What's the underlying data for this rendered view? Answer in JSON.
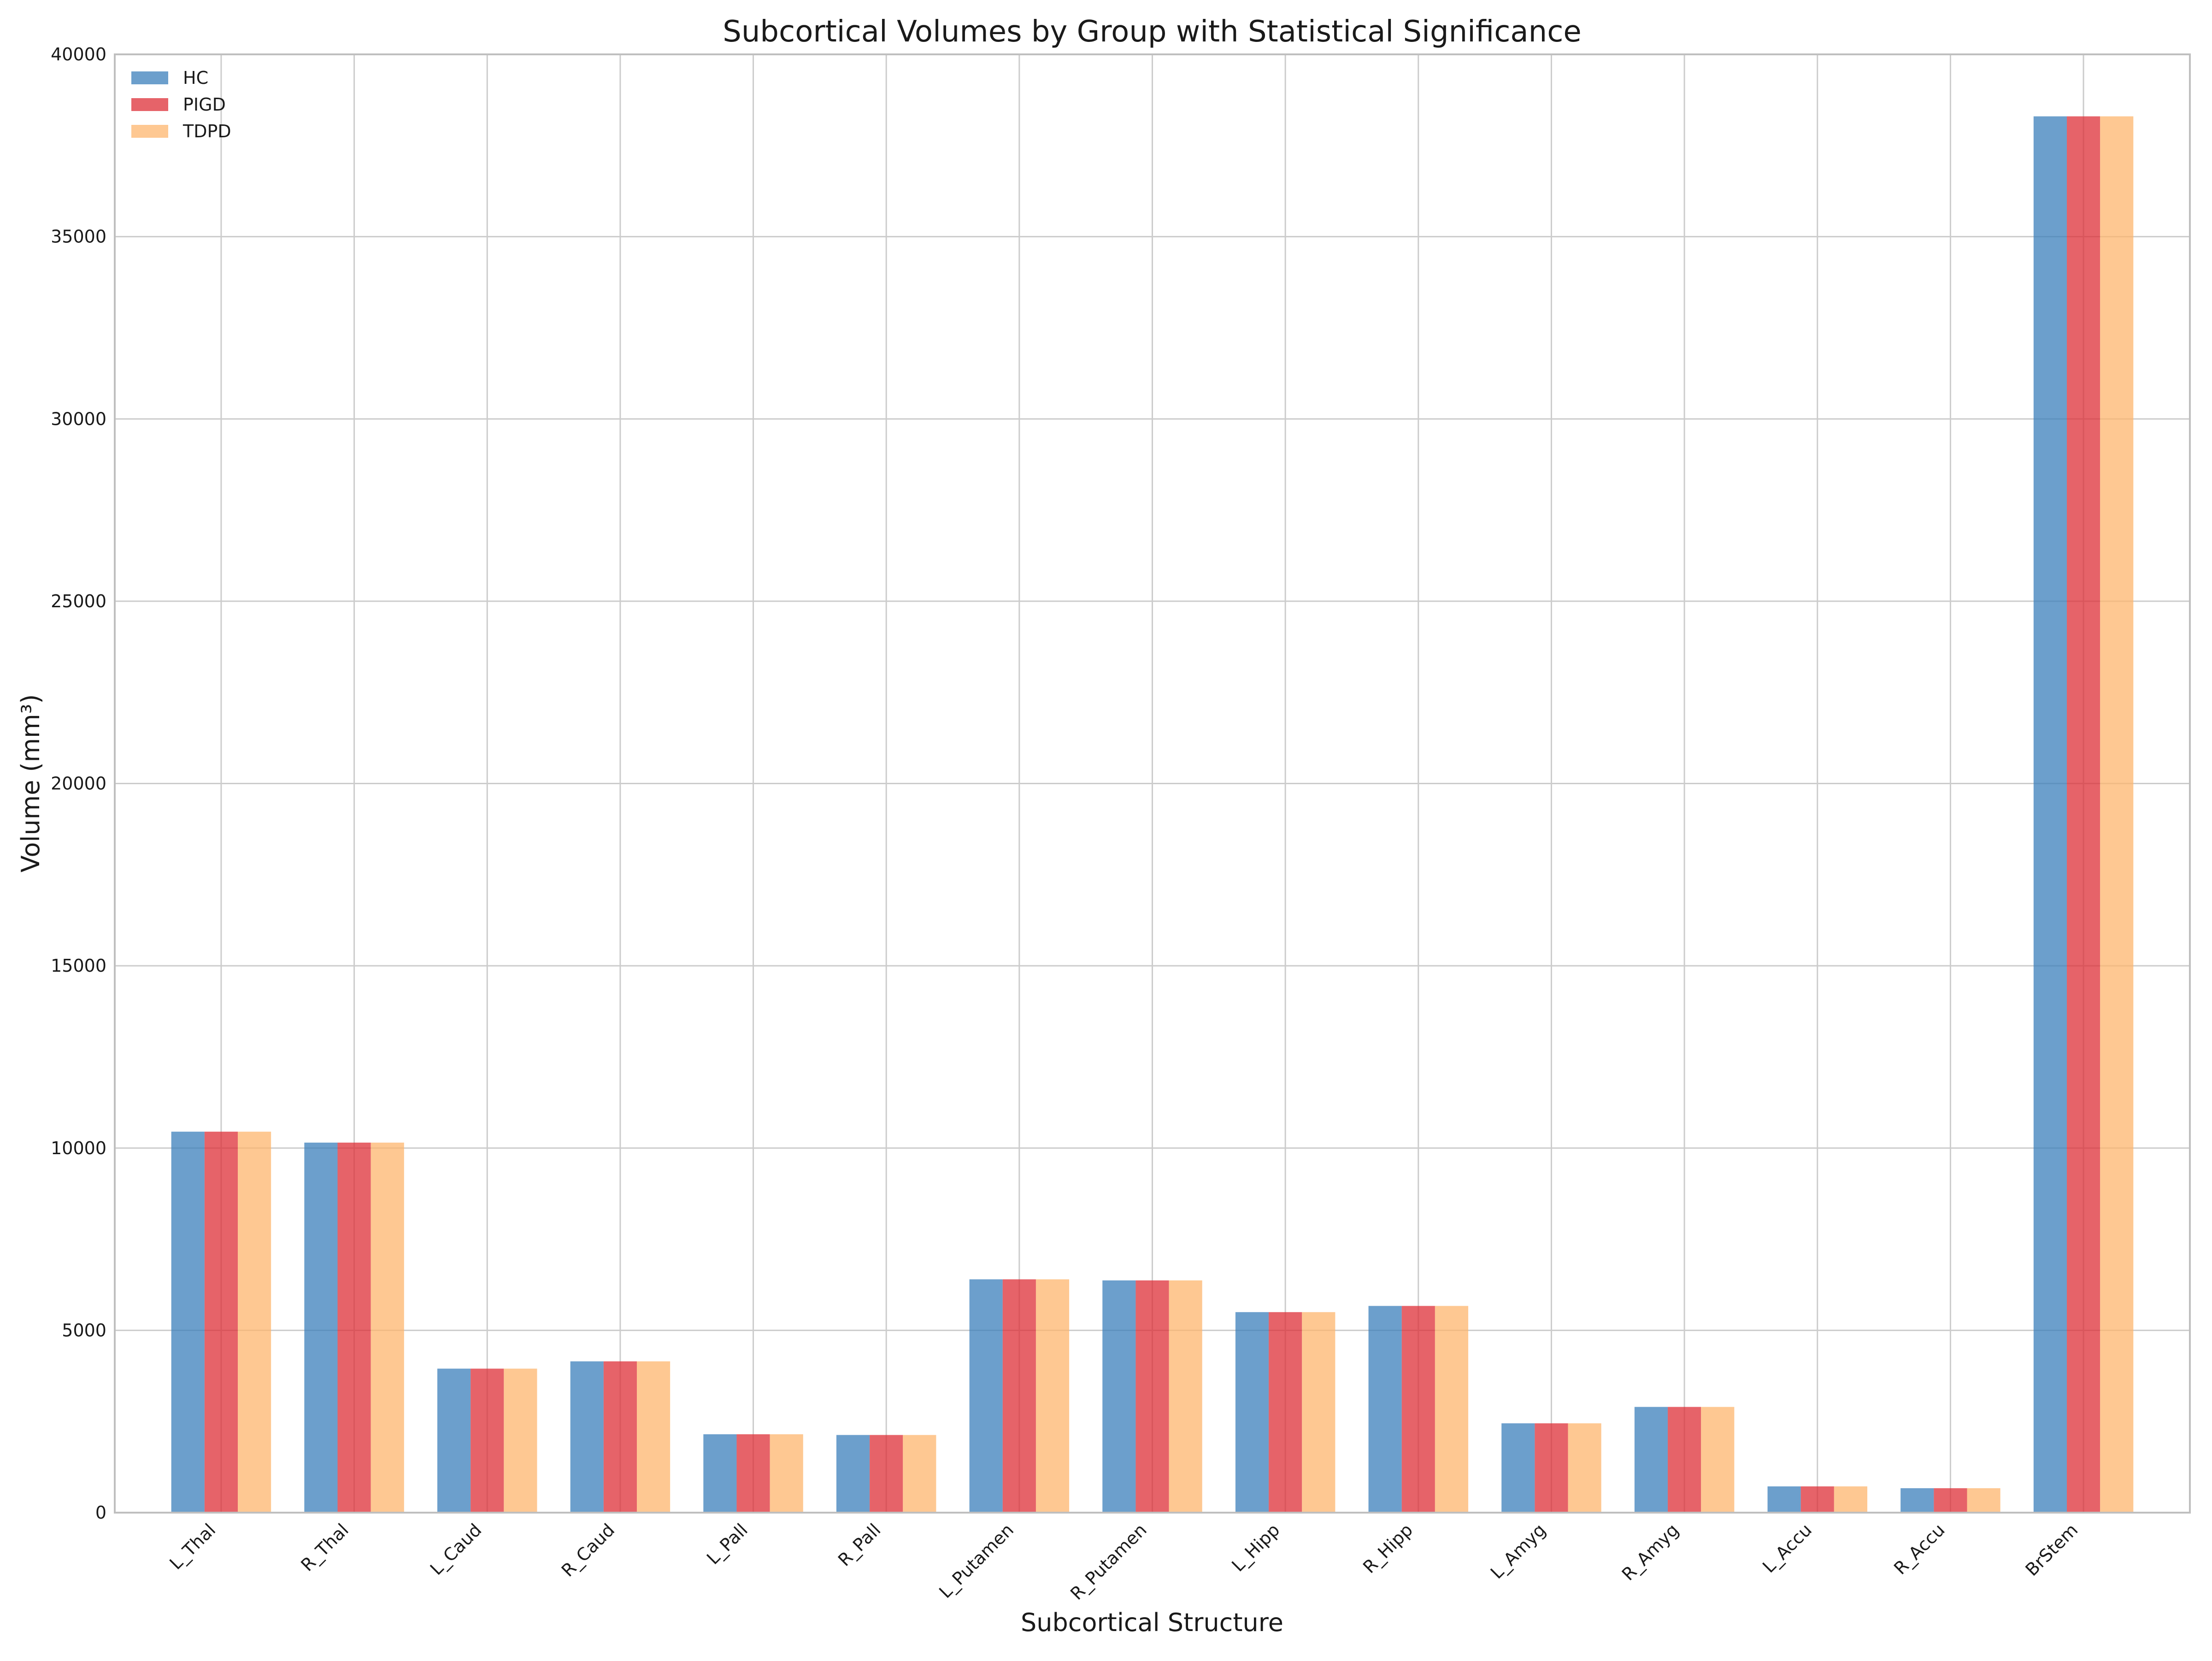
{
  "chart_data": {
    "type": "bar",
    "title": "Subcortical Volumes by Group with Statistical Significance",
    "xlabel": "Subcortical Structure",
    "ylabel": "Volume (mm³)",
    "ylim": [
      0,
      40000
    ],
    "yticks": [
      0,
      5000,
      10000,
      15000,
      20000,
      25000,
      30000,
      35000,
      40000
    ],
    "grid": true,
    "legend_position": "top-left",
    "categories": [
      "L_Thal",
      "R_Thal",
      "L_Caud",
      "R_Caud",
      "L_Pall",
      "R_Pall",
      "L_Putamen",
      "R_Putamen",
      "L_Hipp",
      "R_Hipp",
      "L_Amyg",
      "R_Amyg",
      "L_Accu",
      "R_Accu",
      "BrStem"
    ],
    "series": [
      {
        "name": "HC",
        "color": "#3b7fbb",
        "values": [
          10450,
          10150,
          3950,
          4150,
          2150,
          2130,
          6400,
          6370,
          5500,
          5670,
          2450,
          2900,
          720,
          670,
          38300
        ]
      },
      {
        "name": "PIGD",
        "color": "#de2f37",
        "values": [
          10450,
          10150,
          3950,
          4150,
          2150,
          2130,
          6400,
          6370,
          5500,
          5670,
          2450,
          2900,
          720,
          670,
          38300
        ]
      },
      {
        "name": "TDPD",
        "color": "#fdb56e",
        "values": [
          10450,
          10150,
          3950,
          4150,
          2150,
          2130,
          6400,
          6370,
          5500,
          5670,
          2450,
          2900,
          720,
          670,
          38300
        ]
      }
    ]
  }
}
